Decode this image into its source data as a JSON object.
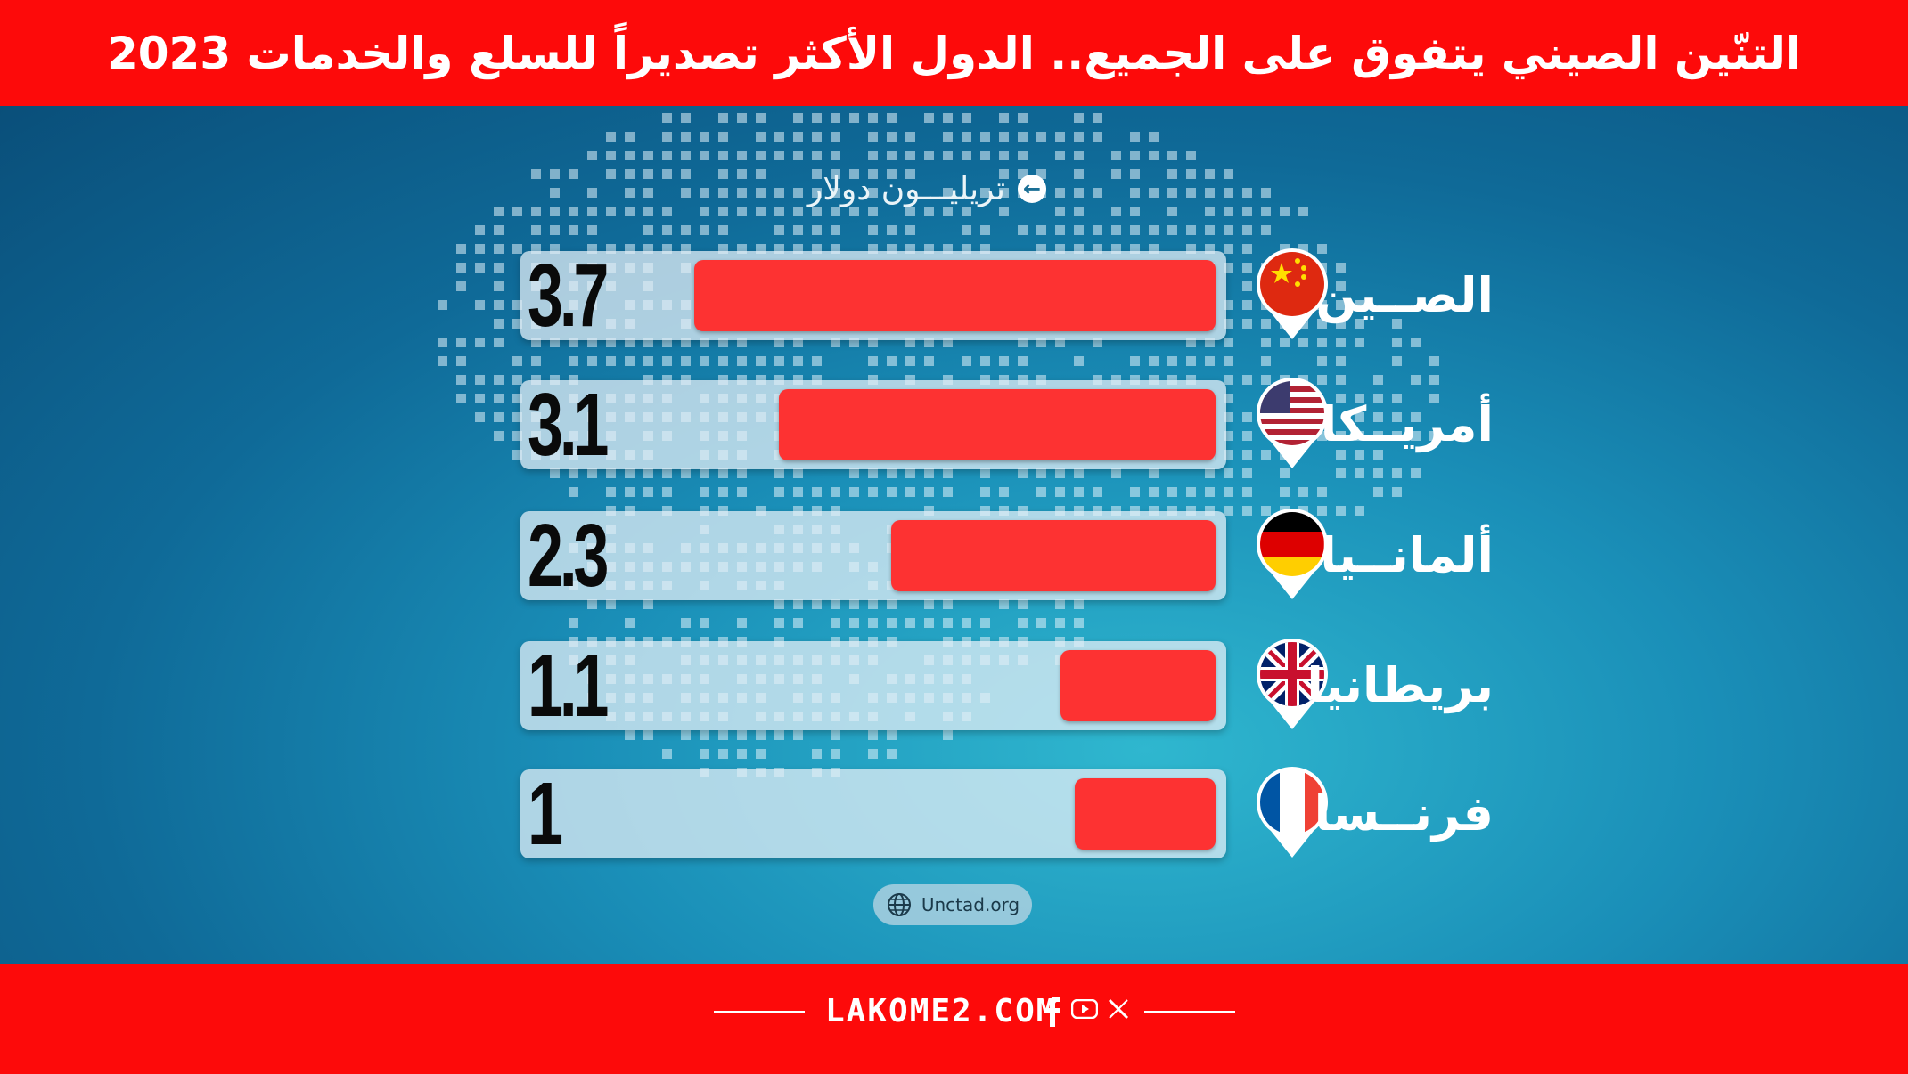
{
  "header": {
    "title": "التنّين الصيني يتفوق على الجميع.. الدول الأكثر تصديراً للسلع والخدمات 2023"
  },
  "unit_label": "تريليـــون دولار",
  "source_label": "Unctad.org",
  "footer": {
    "site": "LAKOME2.COM"
  },
  "colors": {
    "brand_red": "#fd0a0a",
    "bar_red": "#fd3232",
    "track": "#e1eef5"
  },
  "icons": [
    "arrow-left-icon",
    "globe-icon",
    "facebook-icon",
    "youtube-icon",
    "x-icon"
  ],
  "chart_data": {
    "type": "bar",
    "orientation": "horizontal",
    "categories": [
      "الصــين",
      "أمريــكا",
      "ألمانــيا",
      "بريطانيا",
      "فرنــسا"
    ],
    "values": [
      3.7,
      3.1,
      2.3,
      1.1,
      1
    ],
    "value_labels": [
      "3.7",
      "3.1",
      "2.3",
      "1.1",
      "1"
    ],
    "flags": [
      "china",
      "usa",
      "germany",
      "uk",
      "france"
    ],
    "title": "التنّين الصيني يتفوق على الجميع.. الدول الأكثر تصديراً للسلع والخدمات 2023",
    "xlabel": "تريليـــون دولار",
    "ylabel": "",
    "grid": false,
    "legend": "none"
  }
}
